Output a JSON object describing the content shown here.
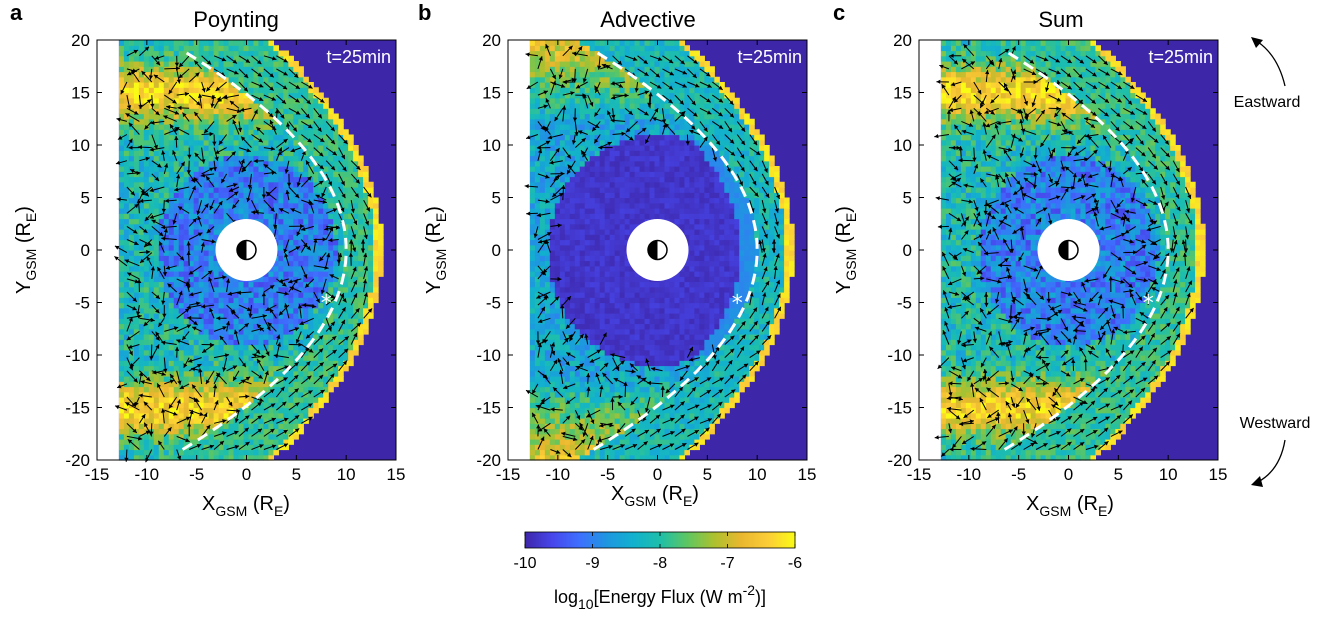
{
  "chart_data": [
    {
      "type": "heatmap",
      "panel_label": "a",
      "title": "Poynting",
      "time_label": "t=25min",
      "xlabel": {
        "main": "X",
        "sub": "GSM",
        "unit_open": " (R",
        "unit_sub": "E",
        "unit_close": ")"
      },
      "ylabel": {
        "main": "Y",
        "sub": "GSM",
        "unit_open": " (R",
        "unit_sub": "E",
        "unit_close": ")"
      },
      "xlim": [
        -15,
        15
      ],
      "ylim": [
        -20,
        20
      ],
      "xticks": [
        -15,
        -10,
        -5,
        0,
        5,
        10,
        15
      ],
      "yticks": [
        -20,
        -15,
        -10,
        -5,
        0,
        5,
        10,
        15,
        20
      ],
      "marker": {
        "symbol": "*",
        "x": 8,
        "y": -5
      },
      "dashed_curve": {
        "type": "parabola",
        "nose_x": 10,
        "scale": 22,
        "y_range": [
          -19,
          19
        ]
      }
    },
    {
      "type": "heatmap",
      "panel_label": "b",
      "title": "Advective",
      "time_label": "t=25min",
      "xlabel": {
        "main": "X",
        "sub": "GSM",
        "unit_open": " (R",
        "unit_sub": "E",
        "unit_close": ")"
      },
      "ylabel": {
        "main": "Y",
        "sub": "GSM",
        "unit_open": " (R",
        "unit_sub": "E",
        "unit_close": ")"
      },
      "xlim": [
        -15,
        15
      ],
      "ylim": [
        -20,
        20
      ],
      "xticks": [
        -15,
        -10,
        -5,
        0,
        5,
        10,
        15
      ],
      "yticks": [
        -20,
        -15,
        -10,
        -5,
        0,
        5,
        10,
        15,
        20
      ],
      "marker": {
        "symbol": "*",
        "x": 8,
        "y": -5
      },
      "dashed_curve": {
        "type": "parabola",
        "nose_x": 10,
        "scale": 22,
        "y_range": [
          -19,
          19
        ]
      }
    },
    {
      "type": "heatmap",
      "panel_label": "c",
      "title": "Sum",
      "time_label": "t=25min",
      "xlabel": {
        "main": "X",
        "sub": "GSM",
        "unit_open": " (R",
        "unit_sub": "E",
        "unit_close": ")"
      },
      "ylabel": {
        "main": "Y",
        "sub": "GSM",
        "unit_open": " (R",
        "unit_sub": "E",
        "unit_close": ")"
      },
      "xlim": [
        -15,
        15
      ],
      "ylim": [
        -20,
        20
      ],
      "xticks": [
        -15,
        -10,
        -5,
        0,
        5,
        10,
        15
      ],
      "yticks": [
        -20,
        -15,
        -10,
        -5,
        0,
        5,
        10,
        15,
        20
      ],
      "marker": {
        "symbol": "*",
        "x": 8,
        "y": -5
      },
      "dashed_curve": {
        "type": "parabola",
        "nose_x": 10,
        "scale": 22,
        "y_range": [
          -19,
          19
        ]
      }
    }
  ],
  "colorbar": {
    "range": [
      -10,
      -6
    ],
    "ticks": [
      -10,
      -9,
      -8,
      -7,
      -6
    ],
    "label": {
      "pre": "log",
      "sub": "10",
      "mid": "[Energy Flux (W m",
      "sup": "-2",
      "post": ")]"
    },
    "colors": [
      "#3e26a8",
      "#4746eb",
      "#3e6ffe",
      "#1f95e1",
      "#12b1ce",
      "#1ebfaa",
      "#5dc662",
      "#acc12f",
      "#e9b72f",
      "#fccd37",
      "#f9fb15"
    ]
  },
  "annotations": {
    "eastward": "Eastward",
    "westward": "Westward"
  },
  "background_color": "#3e26a8"
}
